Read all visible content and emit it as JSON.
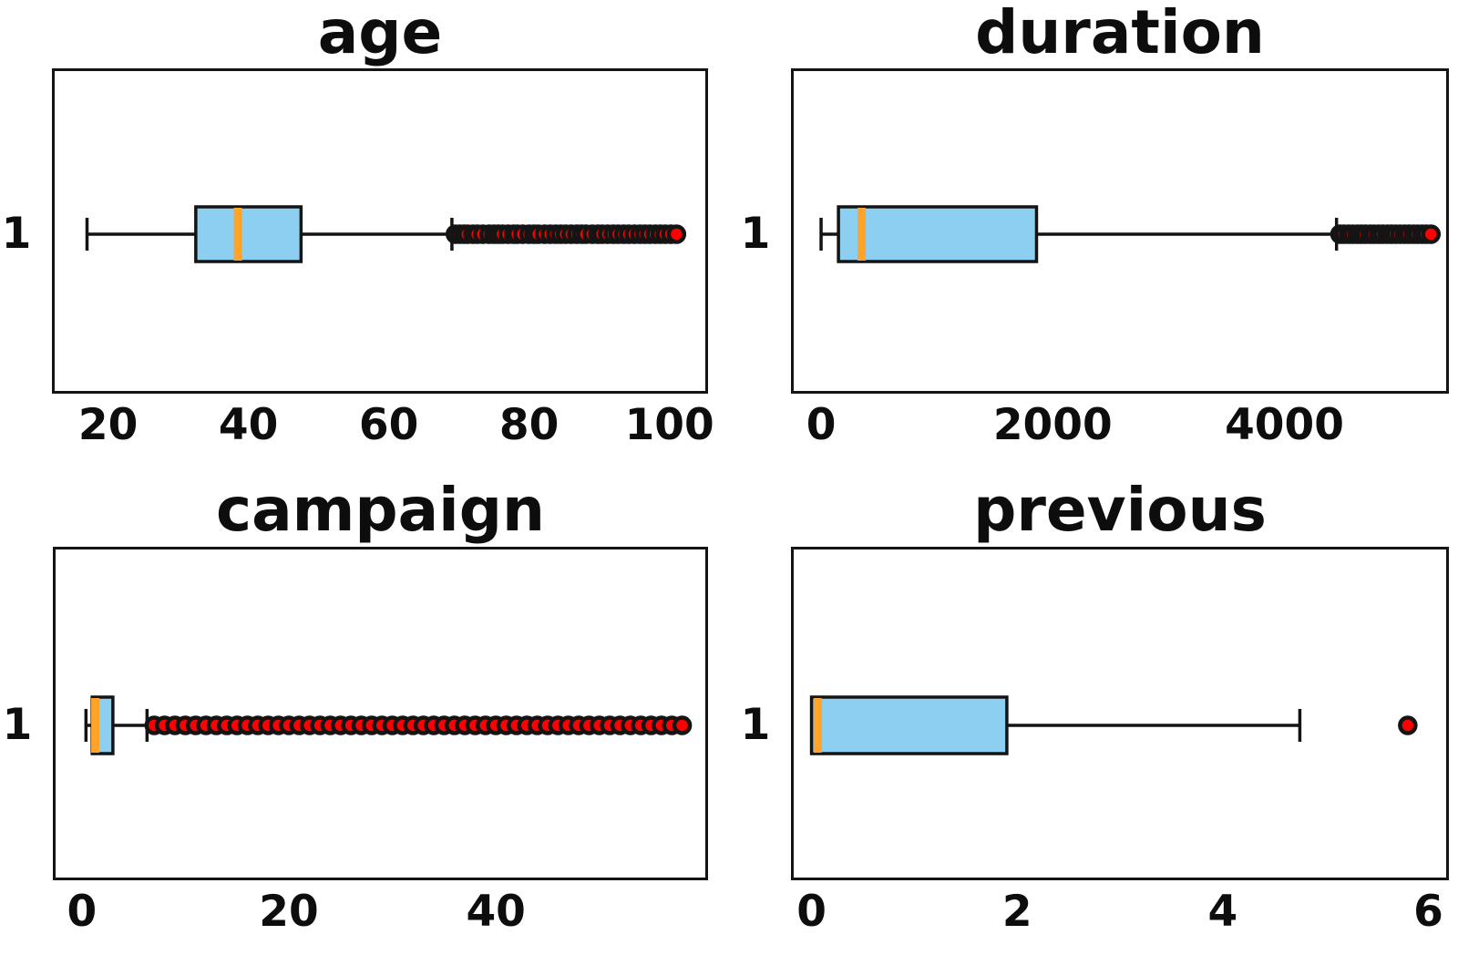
{
  "figure": {
    "background": "#ffffff",
    "kind": "2x2 grid of horizontal box plots"
  },
  "colors": {
    "box_fill": "#8CCFF1",
    "median": "#FFA428",
    "outlier_fill": "#FF0000",
    "line": "#141414"
  },
  "chart_data": [
    {
      "type": "boxplot",
      "title": "age",
      "y_label": "1",
      "orientation": "horizontal",
      "xlim": [
        12,
        105.5
      ],
      "xticks": [
        20,
        40,
        60,
        80,
        100
      ],
      "stats": {
        "whisker_low": 17,
        "q1": 32.5,
        "median": 38.5,
        "q3": 47.5,
        "whisker_high": 69
      },
      "outliers": [
        69.5,
        70.1,
        70.7,
        71.2,
        72,
        72.6,
        73.4,
        74.3,
        75,
        75.6,
        76.2,
        77,
        77.8,
        78.3,
        79.1,
        80,
        80.7,
        81.3,
        82.2,
        83,
        83.8,
        84.5,
        85.2,
        86,
        86.8,
        87.5,
        88.1,
        89,
        89.8,
        90.4,
        91.2,
        92,
        92.7,
        93.5,
        94.2,
        95,
        95.8,
        96.5,
        97.2,
        98,
        98.7,
        99.4,
        100.2,
        101
      ]
    },
    {
      "type": "boxplot",
      "title": "duration",
      "y_label": "1",
      "orientation": "horizontal",
      "xlim": [
        -260,
        5420
      ],
      "xticks": [
        0,
        2000,
        4000
      ],
      "stats": {
        "whisker_low": 0,
        "q1": 150,
        "median": 350,
        "q3": 1860,
        "whisker_high": 4450
      },
      "outliers": [
        4480,
        4515,
        4555,
        4590,
        4630,
        4665,
        4700,
        4740,
        4775,
        4815,
        4850,
        4890,
        4925,
        4960,
        5000,
        5040,
        5075,
        5115,
        5150,
        5190,
        5225,
        5265
      ]
    },
    {
      "type": "boxplot",
      "title": "campaign",
      "y_label": "1",
      "orientation": "horizontal",
      "xlim": [
        -2.8,
        60.5
      ],
      "xticks": [
        0,
        20,
        40
      ],
      "stats": {
        "whisker_low": 0.4,
        "q1": 1,
        "median": 1.3,
        "q3": 3,
        "whisker_high": 6.3
      },
      "outliers": [
        7,
        8,
        9,
        10,
        11,
        12,
        13,
        14,
        15,
        16,
        17,
        18,
        19,
        20,
        21,
        22,
        23,
        24,
        25,
        26,
        27,
        28,
        29,
        30,
        31,
        32,
        33,
        34,
        35,
        36,
        37,
        38,
        39,
        40,
        41,
        42,
        43,
        44,
        45,
        46,
        47,
        48,
        49,
        50,
        51,
        52,
        53,
        54,
        55,
        56,
        57,
        58
      ]
    },
    {
      "type": "boxplot",
      "title": "previous",
      "y_label": "1",
      "orientation": "horizontal",
      "xlim": [
        -0.2,
        6.2
      ],
      "xticks": [
        0,
        2,
        4,
        6
      ],
      "stats": {
        "whisker_low": 0,
        "q1": 0,
        "median": 0.06,
        "q3": 1.9,
        "whisker_high": 4.75
      },
      "outliers": [
        5.8
      ]
    }
  ]
}
